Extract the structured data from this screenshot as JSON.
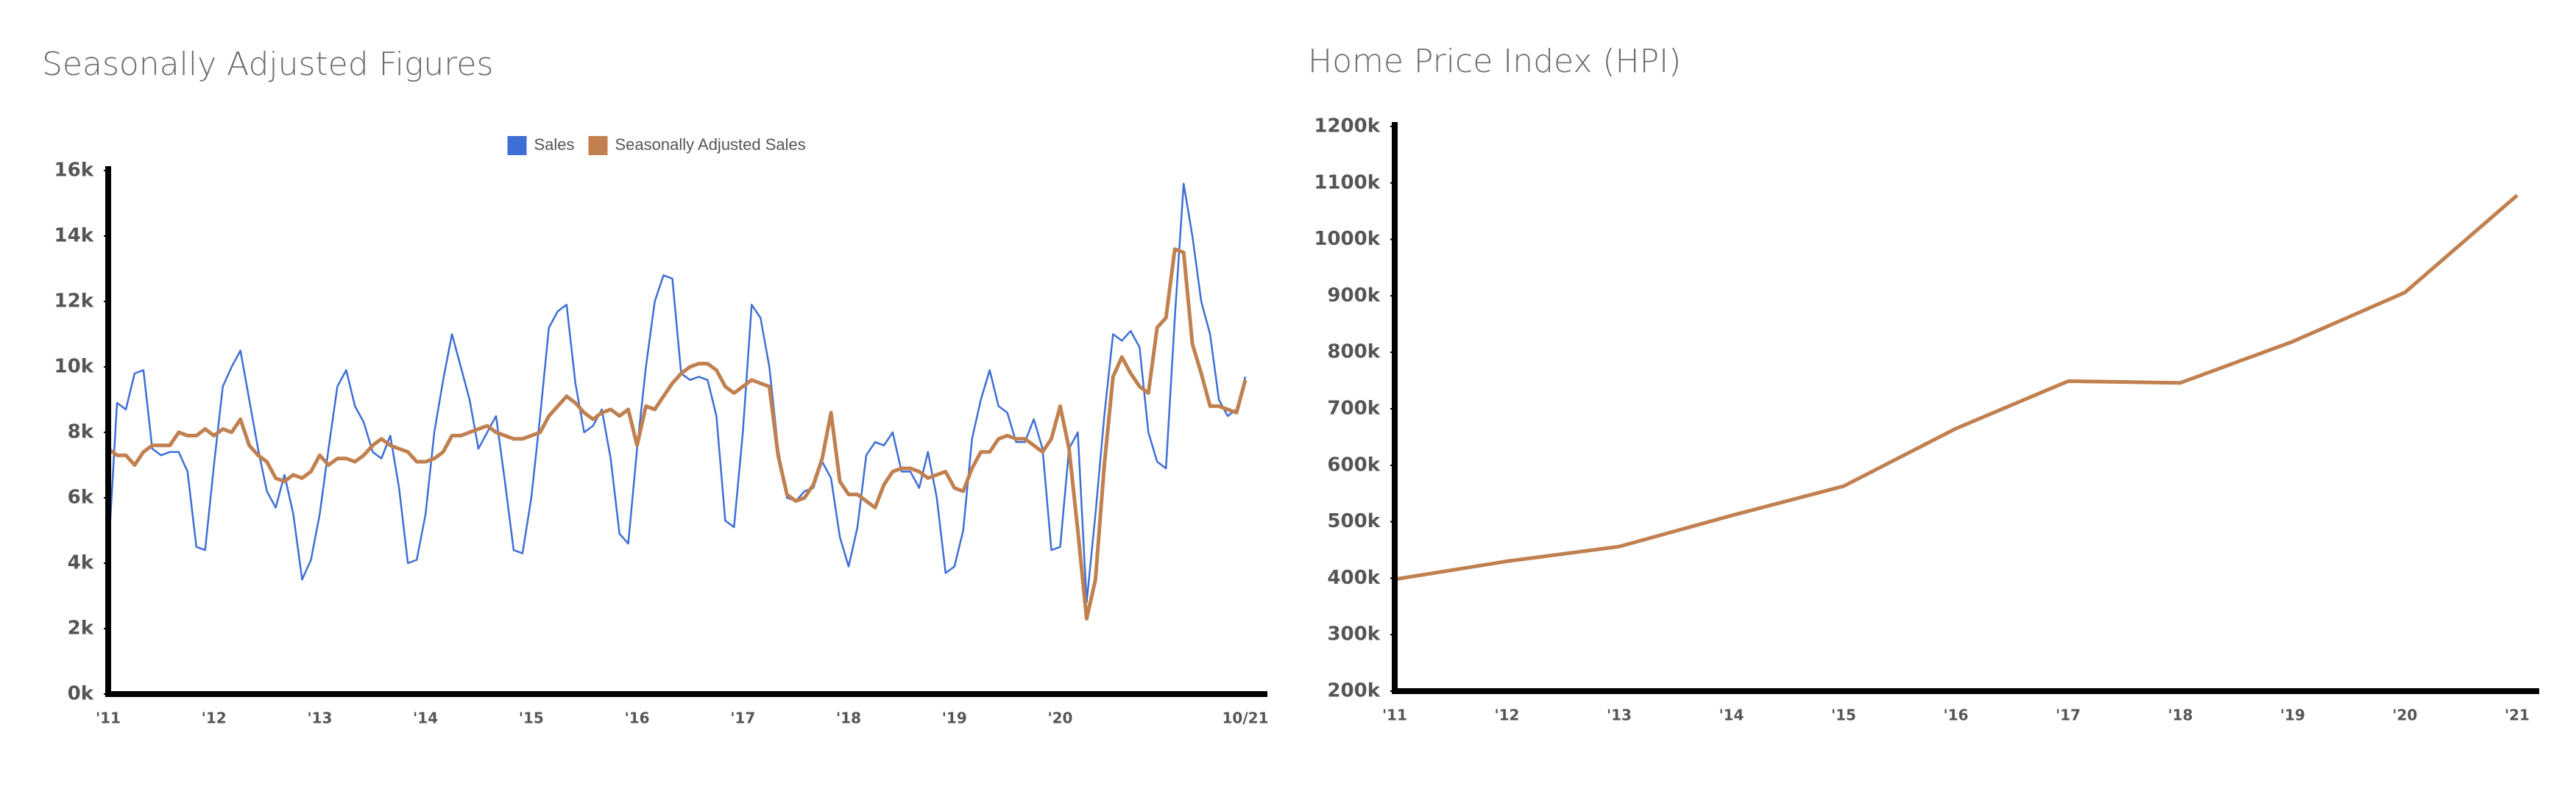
{
  "chart_data": [
    {
      "type": "line",
      "title": "Seasonally Adjusted Figures",
      "categories": [
        "'11",
        null,
        null,
        null,
        null,
        null,
        null,
        null,
        null,
        null,
        null,
        null,
        "'12",
        null,
        null,
        null,
        null,
        null,
        null,
        null,
        null,
        null,
        null,
        null,
        "'13",
        null,
        null,
        null,
        null,
        null,
        null,
        null,
        null,
        null,
        null,
        null,
        "'14",
        null,
        null,
        null,
        null,
        null,
        null,
        null,
        null,
        null,
        null,
        null,
        "'15",
        null,
        null,
        null,
        null,
        null,
        null,
        null,
        null,
        null,
        null,
        null,
        "'16",
        null,
        null,
        null,
        null,
        null,
        null,
        null,
        null,
        null,
        null,
        null,
        "'17",
        null,
        null,
        null,
        null,
        null,
        null,
        null,
        null,
        null,
        null,
        null,
        "'18",
        null,
        null,
        null,
        null,
        null,
        null,
        null,
        null,
        null,
        null,
        null,
        "'19",
        null,
        null,
        null,
        null,
        null,
        null,
        null,
        null,
        null,
        null,
        null,
        "'20",
        null,
        null,
        null,
        null,
        null,
        null,
        null,
        null,
        null,
        null,
        null,
        null,
        null,
        null,
        null,
        null,
        null,
        null,
        null,
        null,
        "10/21"
      ],
      "series": [
        {
          "name": "Sales",
          "color": "#3d6fd6",
          "width": 2.5,
          "values": [
            4200,
            8900,
            8700,
            9800,
            9900,
            7500,
            7300,
            7400,
            7400,
            6800,
            4500,
            4400,
            7000,
            9400,
            10000,
            10500,
            9000,
            7500,
            6200,
            5700,
            6700,
            5500,
            3500,
            4100,
            5500,
            7500,
            9400,
            9900,
            8800,
            8300,
            7400,
            7200,
            7900,
            6300,
            4000,
            4100,
            5500,
            8000,
            9600,
            11000,
            10000,
            9000,
            7500,
            8000,
            8500,
            6500,
            4400,
            4300,
            6000,
            8500,
            11200,
            11700,
            11900,
            9500,
            8000,
            8200,
            8700,
            7200,
            4900,
            4600,
            7500,
            10000,
            12000,
            12800,
            12700,
            9800,
            9600,
            9700,
            9600,
            8500,
            5300,
            5100,
            8000,
            11900,
            11500,
            10000,
            7500,
            6000,
            5900,
            6200,
            6300,
            7100,
            6600,
            4800,
            3900,
            5100,
            7300,
            7700,
            7600,
            8000,
            6800,
            6800,
            6300,
            7400,
            6000,
            3700,
            3900,
            5000,
            7800,
            9000,
            9900,
            8800,
            8600,
            7700,
            7700,
            8400,
            7500,
            4400,
            4500,
            7500,
            8000,
            2800,
            5500,
            8500,
            11000,
            10800,
            11100,
            10600,
            8000,
            7100,
            6900,
            11500,
            15600,
            14000,
            12000,
            11000,
            9000,
            8500,
            8700,
            9700
          ]
        },
        {
          "name": "Seasonally Adjusted Sales",
          "color": "#c0804f",
          "width": 5,
          "values": [
            7500,
            7300,
            7300,
            7000,
            7400,
            7600,
            7600,
            7600,
            8000,
            7900,
            7900,
            8100,
            7900,
            8100,
            8000,
            8400,
            7600,
            7300,
            7100,
            6600,
            6500,
            6700,
            6600,
            6800,
            7300,
            7000,
            7200,
            7200,
            7100,
            7300,
            7600,
            7800,
            7600,
            7500,
            7400,
            7100,
            7100,
            7200,
            7400,
            7900,
            7900,
            8000,
            8100,
            8200,
            8000,
            7900,
            7800,
            7800,
            7900,
            8000,
            8500,
            8800,
            9100,
            8900,
            8600,
            8400,
            8600,
            8700,
            8500,
            8700,
            7600,
            8800,
            8700,
            9100,
            9500,
            9800,
            10000,
            10100,
            10100,
            9900,
            9400,
            9200,
            9400,
            9600,
            9500,
            9400,
            7300,
            6100,
            5900,
            6000,
            6400,
            7200,
            8600,
            6500,
            6100,
            6100,
            5900,
            5700,
            6400,
            6800,
            6900,
            6900,
            6800,
            6600,
            6700,
            6800,
            6300,
            6200,
            6900,
            7400,
            7400,
            7800,
            7900,
            7800,
            7800,
            7600,
            7400,
            7800,
            8800,
            7500,
            5000,
            2300,
            3500,
            7000,
            9700,
            10300,
            9800,
            9400,
            9200,
            11200,
            11500,
            13600,
            13500,
            10700,
            9800,
            8800,
            8800,
            8700,
            8600,
            9600
          ]
        }
      ],
      "ylim": [
        0,
        16000
      ],
      "yticks": [
        {
          "value": 0,
          "label": "0k"
        },
        {
          "value": 2000,
          "label": "2k"
        },
        {
          "value": 4000,
          "label": "4k"
        },
        {
          "value": 6000,
          "label": "6k"
        },
        {
          "value": 8000,
          "label": "8k"
        },
        {
          "value": 10000,
          "label": "10k"
        },
        {
          "value": 12000,
          "label": "12k"
        },
        {
          "value": 14000,
          "label": "14k"
        },
        {
          "value": 16000,
          "label": "16k"
        }
      ],
      "legend": "top"
    },
    {
      "type": "line",
      "title": "Home Price Index (HPI)",
      "categories": [
        "'11",
        "'12",
        "'13",
        "'14",
        "'15",
        "'16",
        "'17",
        "'18",
        "'19",
        "'20",
        "'21"
      ],
      "values": [
        398000,
        430000,
        456000,
        511000,
        563000,
        665000,
        749000,
        746000,
        819000,
        906000,
        1078000
      ],
      "color": "#c0804f",
      "ylim": [
        200000,
        1200000
      ],
      "yticks": [
        {
          "value": 200000,
          "label": "200k"
        },
        {
          "value": 300000,
          "label": "300k"
        },
        {
          "value": 400000,
          "label": "400k"
        },
        {
          "value": 500000,
          "label": "500k"
        },
        {
          "value": 600000,
          "label": "600k"
        },
        {
          "value": 700000,
          "label": "700k"
        },
        {
          "value": 800000,
          "label": "800k"
        },
        {
          "value": 900000,
          "label": "900k"
        },
        {
          "value": 1000000,
          "label": "1000k"
        },
        {
          "value": 1100000,
          "label": "1100k"
        },
        {
          "value": 1200000,
          "label": "1200k"
        }
      ]
    }
  ]
}
